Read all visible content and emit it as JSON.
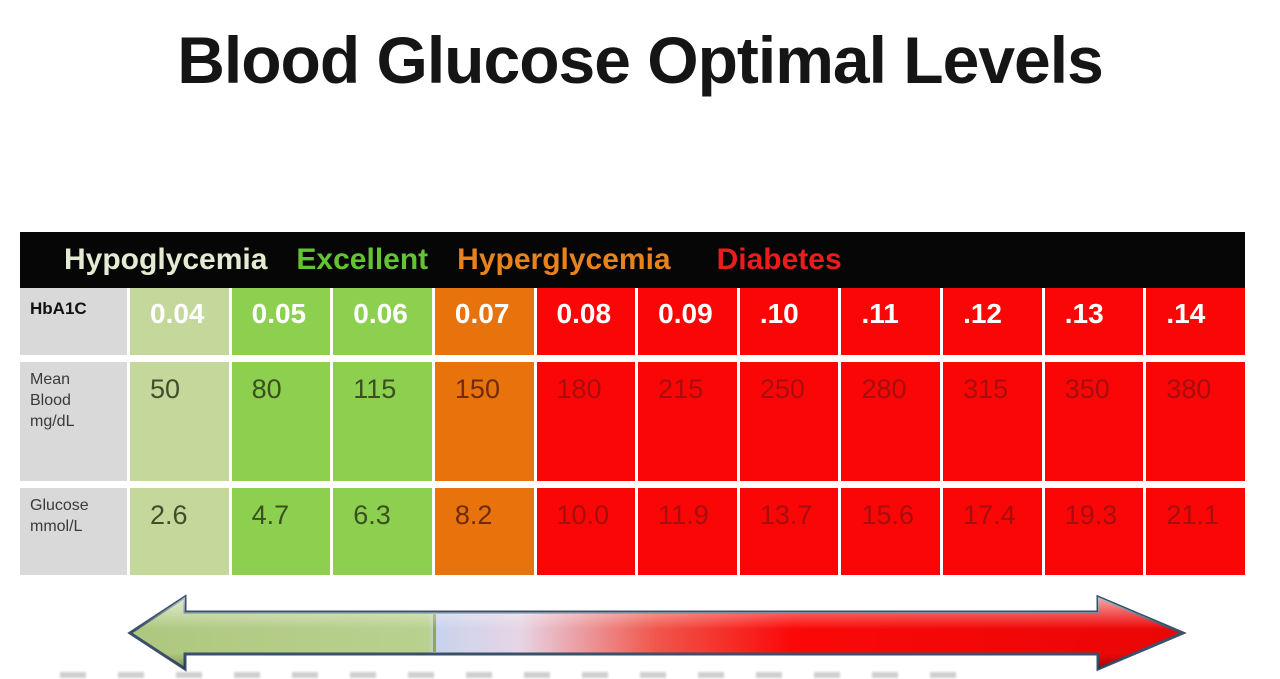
{
  "title": "Blood Glucose Optimal Levels",
  "legend": {
    "items": [
      {
        "id": "hypoglycemia",
        "label": "Hypoglycemia",
        "color": "#e3ecd3"
      },
      {
        "id": "excellent",
        "label": "Excellent",
        "color": "#62c431"
      },
      {
        "id": "hyperglycemia",
        "label": "Hyperglycemia",
        "color": "#e8821d"
      },
      {
        "id": "diabetes",
        "label": "Diabetes",
        "color": "#ed1c1c"
      }
    ]
  },
  "table": {
    "zones": [
      "pale",
      "green",
      "green",
      "orange",
      "red",
      "red",
      "red",
      "red",
      "red",
      "red",
      "red"
    ],
    "rows": [
      {
        "id": "hba1c",
        "header": "HbA1C",
        "values": [
          "0.04",
          "0.05",
          "0.06",
          "0.07",
          "0.08",
          "0.09",
          ".10",
          ".11",
          ".12",
          ".13",
          ".14"
        ]
      },
      {
        "id": "mean-blood",
        "header": "Mean\nBlood\nmg/dL",
        "values": [
          "50",
          "80",
          "115",
          "150",
          "180",
          "215",
          "250",
          "280",
          "315",
          "350",
          "380"
        ]
      },
      {
        "id": "glucose",
        "header": "Glucose\nmmol/L",
        "values": [
          "2.6",
          "4.7",
          "6.3",
          "8.2",
          "10.0",
          "11.9",
          "13.7",
          "15.6",
          "17.4",
          "19.3",
          "21.1"
        ]
      }
    ]
  },
  "colors": {
    "zone_pale_green": "#c3d89a",
    "zone_green": "#8dd04f",
    "zone_orange": "#e8730d",
    "zone_red": "#fb0606",
    "row_label_gray": "#d9d9d9",
    "legend_bar_black": "#060606",
    "arrow_outline": "#3a5169",
    "arrow_green": "#b9d18f",
    "arrow_red": "#fb0808"
  },
  "chart_data": {
    "type": "table",
    "title": "Blood Glucose Optimal Levels",
    "categories_label": "HbA1C",
    "categories": [
      "0.04",
      "0.05",
      "0.06",
      "0.07",
      "0.08",
      "0.09",
      ".10",
      ".11",
      ".12",
      ".13",
      ".14"
    ],
    "series": [
      {
        "name": "Mean Blood mg/dL",
        "values": [
          50,
          80,
          115,
          150,
          180,
          215,
          250,
          280,
          315,
          350,
          380
        ]
      },
      {
        "name": "Glucose mmol/L",
        "values": [
          2.6,
          4.7,
          6.3,
          8.2,
          10.0,
          11.9,
          13.7,
          15.6,
          17.4,
          19.3,
          21.1
        ]
      }
    ],
    "zones": [
      {
        "label": "Hypoglycemia",
        "columns": [
          "0.04"
        ],
        "color": "#c3d89a"
      },
      {
        "label": "Excellent",
        "columns": [
          "0.05",
          "0.06"
        ],
        "color": "#8dd04f"
      },
      {
        "label": "Hyperglycemia",
        "columns": [
          "0.07"
        ],
        "color": "#e8730d"
      },
      {
        "label": "Diabetes",
        "columns": [
          "0.08",
          "0.09",
          ".10",
          ".11",
          ".12",
          ".13",
          ".14"
        ],
        "color": "#fb0606"
      }
    ],
    "layout": {
      "severity_arrow": "double-headed, green (low) on left to red (high) on right"
    }
  }
}
